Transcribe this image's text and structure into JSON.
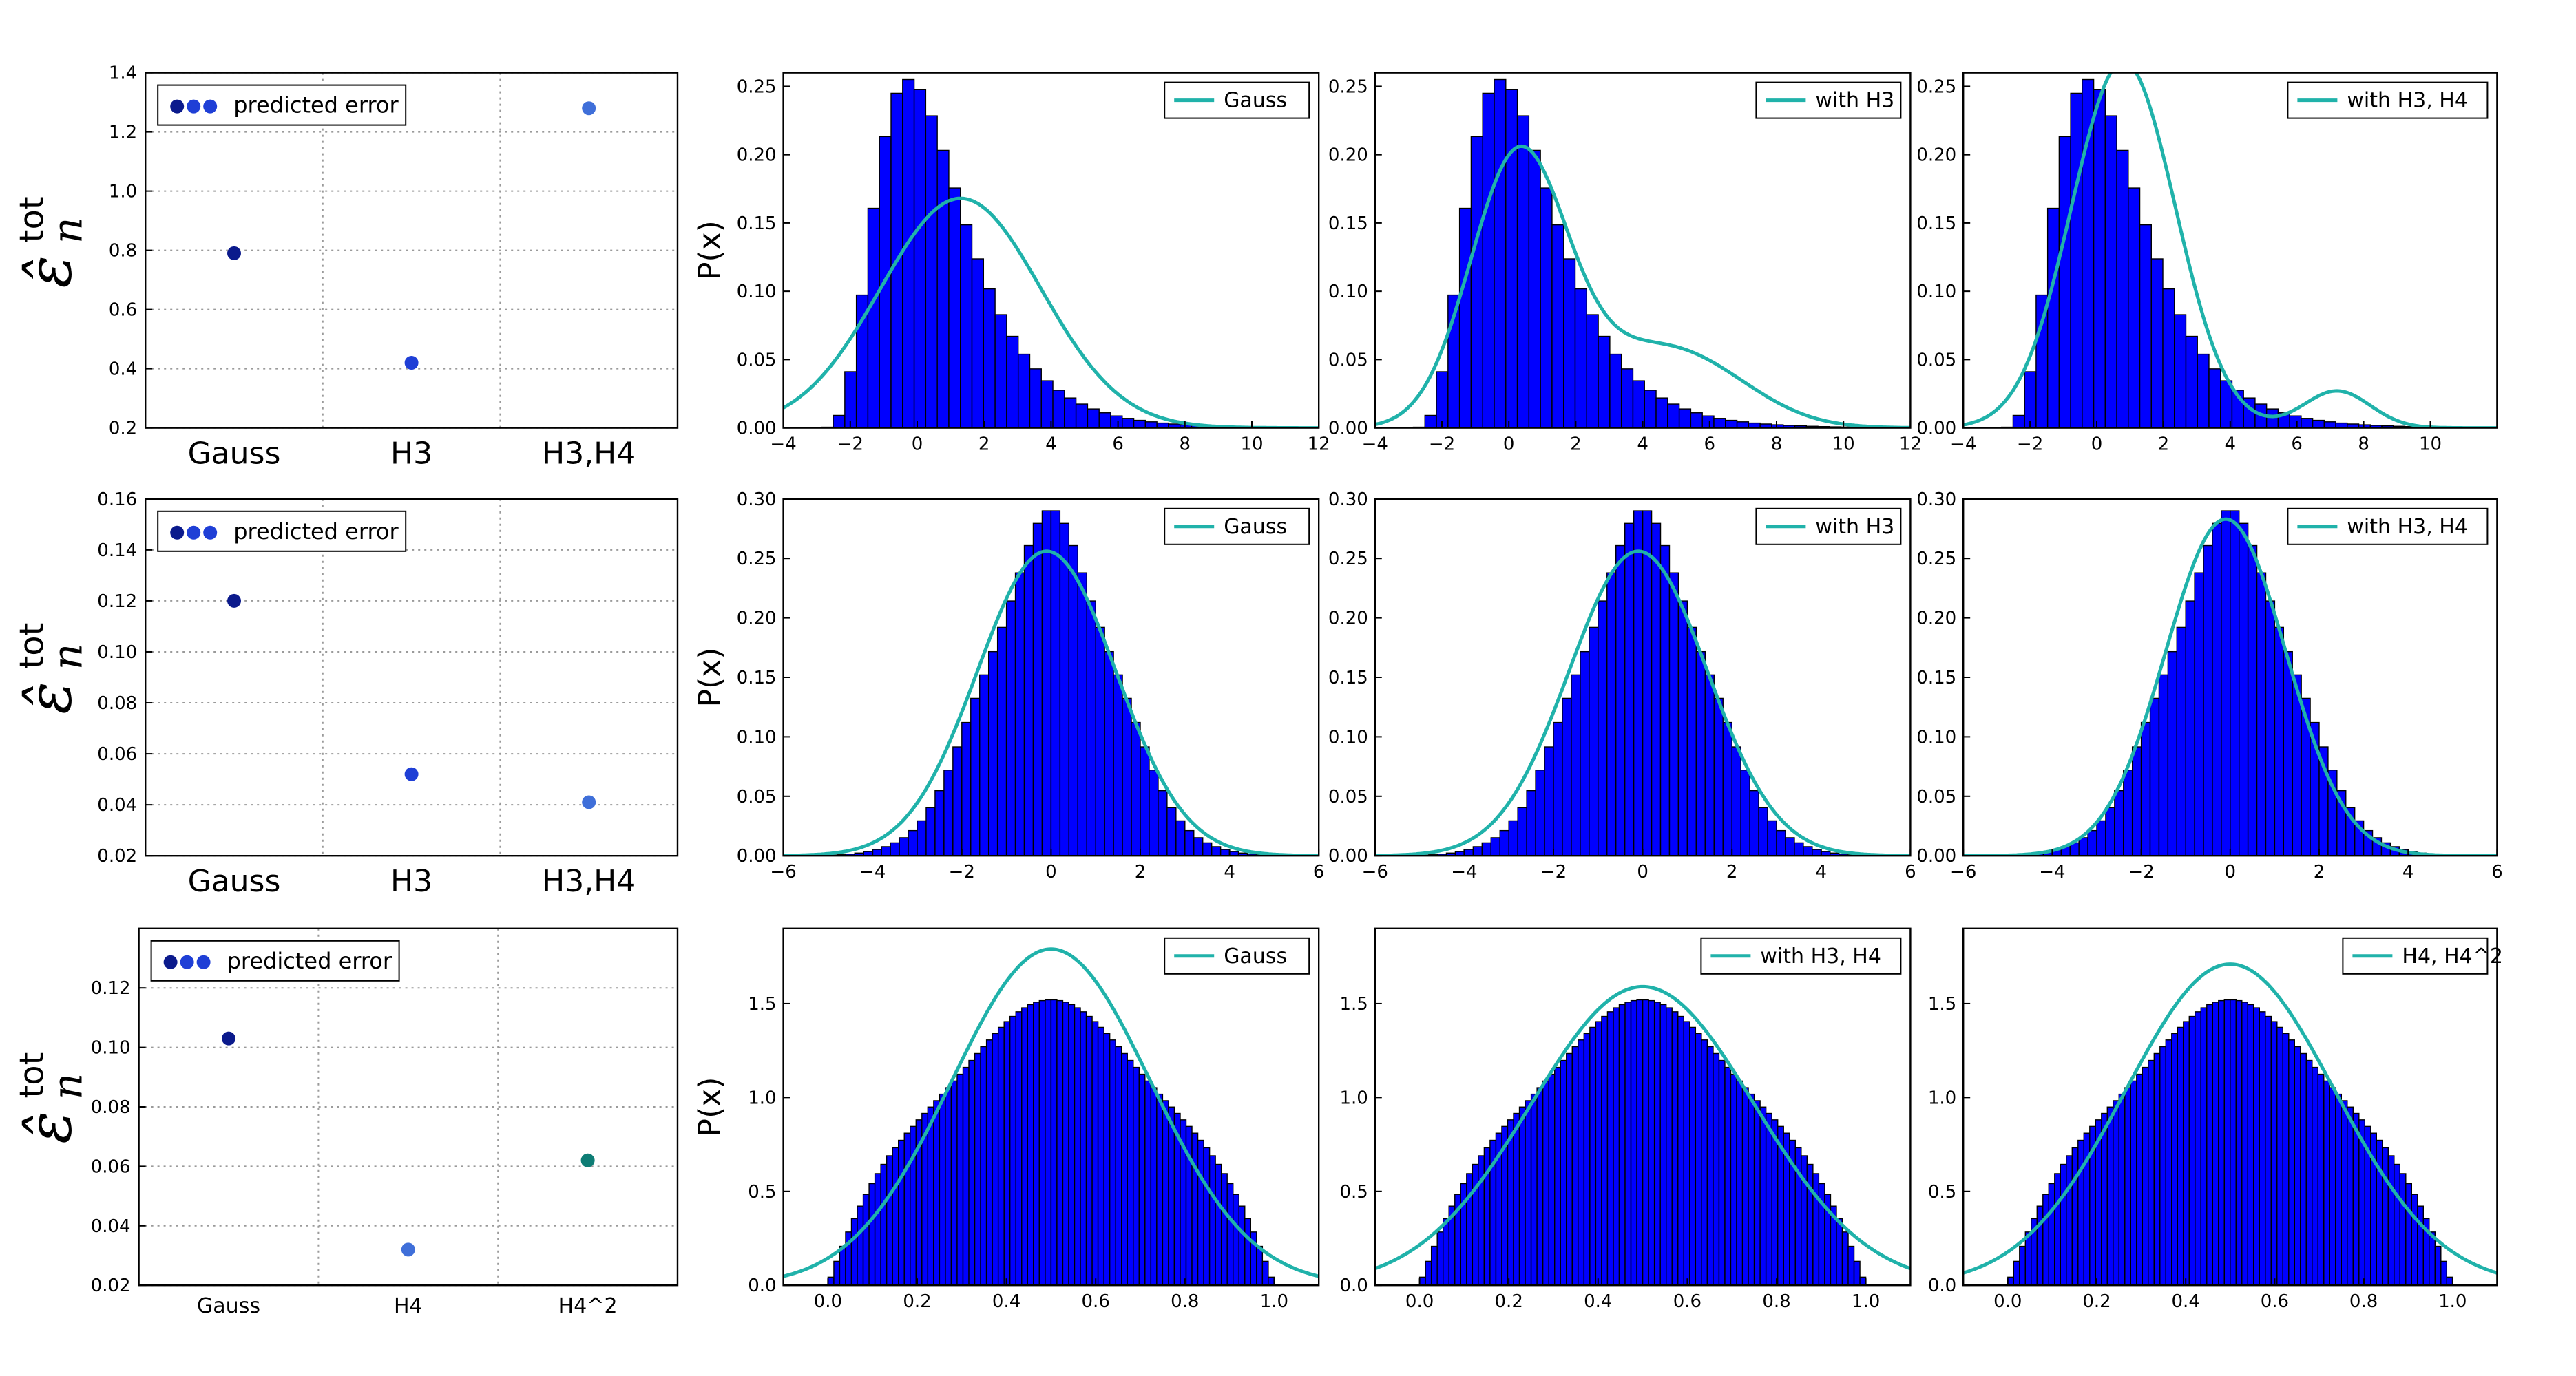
{
  "colors": {
    "hist_fill": "#0000ff",
    "hist_edge": "#000000",
    "fit_line": "#20b2aa",
    "dot_gauss": "#0b1a8c",
    "dot_h3": "#1f3fd6",
    "dot_h3h4": "#3f6fd9",
    "dot_teal": "#0e7d75",
    "grid": "#9a9a9a"
  },
  "ylabel_error": {
    "main": "ε̂",
    "sub": "n",
    "sup": "tot"
  },
  "chart_data": [
    {
      "type": "scatter",
      "row": 0,
      "col": 0,
      "categories": [
        "Gauss",
        "H3",
        "H3,H4"
      ],
      "points": [
        {
          "category": "Gauss",
          "y": 0.79,
          "color": "#0b1a8c"
        },
        {
          "category": "H3",
          "y": 0.42,
          "color": "#1f3fd6"
        },
        {
          "category": "H3,H4",
          "y": 1.28,
          "color": "#3f6fd9"
        }
      ],
      "ylim": [
        0.2,
        1.4
      ],
      "yticks": [
        0.2,
        0.4,
        0.6,
        0.8,
        1.0,
        1.2,
        1.4
      ],
      "ytick_labels": [
        "0.2",
        "0.4",
        "0.6",
        "0.8",
        "1.0",
        "1.2",
        "1.4"
      ],
      "legend": "predicted error",
      "grid": true,
      "legend_position": "top-left"
    },
    {
      "type": "scatter",
      "row": 1,
      "col": 0,
      "categories": [
        "Gauss",
        "H3",
        "H3,H4"
      ],
      "points": [
        {
          "category": "Gauss",
          "y": 0.12,
          "color": "#0b1a8c"
        },
        {
          "category": "H3",
          "y": 0.052,
          "color": "#1f3fd6"
        },
        {
          "category": "H3,H4",
          "y": 0.041,
          "color": "#3f6fd9"
        }
      ],
      "ylim": [
        0.02,
        0.16
      ],
      "yticks": [
        0.02,
        0.04,
        0.06,
        0.08,
        0.1,
        0.12,
        0.14,
        0.16
      ],
      "ytick_labels": [
        "0.02",
        "0.04",
        "0.06",
        "0.08",
        "0.10",
        "0.12",
        "0.14",
        "0.16"
      ],
      "legend": "predicted error",
      "grid": true,
      "legend_position": "top-left"
    },
    {
      "type": "scatter",
      "row": 2,
      "col": 0,
      "categories": [
        "Gauss",
        "H4",
        "H4^2"
      ],
      "points": [
        {
          "category": "Gauss",
          "y": 0.103,
          "color": "#0b1a8c"
        },
        {
          "category": "H4",
          "y": 0.032,
          "color": "#3f6fd9"
        },
        {
          "category": "H4^2",
          "y": 0.062,
          "color": "#0e7d75"
        }
      ],
      "ylim": [
        0.02,
        0.14
      ],
      "yticks": [
        0.02,
        0.04,
        0.06,
        0.08,
        0.1,
        0.12
      ],
      "ytick_labels": [
        "0.02",
        "0.04",
        "0.06",
        "0.08",
        "0.10",
        "0.12"
      ],
      "legend": "predicted error",
      "grid": true,
      "legend_position": "top-left"
    },
    {
      "type": "bar",
      "row": 0,
      "col": 1,
      "dist": "skewed",
      "fit": "gauss",
      "ylabel": "P(x)",
      "legend": "Gauss",
      "legend_position": "top-right",
      "xlim": [
        -4,
        12
      ],
      "ylim": [
        0,
        0.26
      ],
      "xticks": [
        -4,
        -2,
        0,
        2,
        4,
        6,
        8,
        10,
        12
      ],
      "xtick_labels": [
        "−4",
        "−2",
        "0",
        "2",
        "4",
        "6",
        "8",
        "10",
        "12"
      ],
      "yticks": [
        0,
        0.05,
        0.1,
        0.15,
        0.2,
        0.25
      ],
      "ytick_labels": [
        "0.00",
        "0.05",
        "0.10",
        "0.15",
        "0.20",
        "0.25"
      ],
      "bin_range": [
        -3.2,
        12
      ],
      "bins": 44,
      "peak": 0.255,
      "fit_params": {
        "mean": 1.3,
        "sd": 2.4,
        "peak": 0.168
      }
    },
    {
      "type": "bar",
      "row": 0,
      "col": 2,
      "dist": "skewed",
      "fit": "h3",
      "legend": "with H3",
      "legend_position": "top-right",
      "xlim": [
        -4,
        12
      ],
      "ylim": [
        0,
        0.26
      ],
      "xticks": [
        -4,
        -2,
        0,
        2,
        4,
        6,
        8,
        10,
        12
      ],
      "xtick_labels": [
        "−4",
        "−2",
        "0",
        "2",
        "4",
        "6",
        "8",
        "10",
        "12"
      ],
      "yticks": [
        0,
        0.05,
        0.1,
        0.15,
        0.2,
        0.25
      ],
      "ytick_labels": [
        "0.00",
        "0.05",
        "0.10",
        "0.15",
        "0.20",
        "0.25"
      ],
      "bin_range": [
        -3.2,
        12
      ],
      "bins": 44,
      "peak": 0.255
    },
    {
      "type": "bar",
      "row": 0,
      "col": 3,
      "dist": "skewed",
      "fit": "h3h4",
      "legend": "with H3, H4",
      "legend_position": "top-right",
      "xlim": [
        -4,
        12
      ],
      "ylim": [
        0,
        0.26
      ],
      "xticks": [
        -4,
        -2,
        0,
        2,
        4,
        6,
        8,
        10
      ],
      "xtick_labels": [
        "−4",
        "−2",
        "0",
        "2",
        "4",
        "6",
        "8",
        "10"
      ],
      "yticks": [
        0,
        0.05,
        0.1,
        0.15,
        0.2,
        0.25
      ],
      "ytick_labels": [
        "0.00",
        "0.05",
        "0.10",
        "0.15",
        "0.20",
        "0.25"
      ],
      "bin_range": [
        -3.2,
        12
      ],
      "bins": 44,
      "peak": 0.255
    },
    {
      "type": "bar",
      "row": 1,
      "col": 1,
      "dist": "normal",
      "fit": "gauss",
      "ylabel": "P(x)",
      "legend": "Gauss",
      "legend_position": "top-right",
      "xlim": [
        -6,
        6
      ],
      "ylim": [
        0,
        0.3
      ],
      "xticks": [
        -6,
        -4,
        -2,
        0,
        2,
        4,
        6
      ],
      "xtick_labels": [
        "−6",
        "−4",
        "−2",
        "0",
        "2",
        "4",
        "6"
      ],
      "yticks": [
        0,
        0.05,
        0.1,
        0.15,
        0.2,
        0.25,
        0.3
      ],
      "ytick_labels": [
        "0.00",
        "0.05",
        "0.10",
        "0.15",
        "0.20",
        "0.25",
        "0.30"
      ],
      "bin_range": [
        -5.6,
        5.6
      ],
      "bins": 56,
      "peak": 0.29,
      "fit_params": {
        "mean": -0.1,
        "sd": 1.55,
        "peak": 0.256
      }
    },
    {
      "type": "bar",
      "row": 1,
      "col": 2,
      "dist": "normal",
      "fit": "gauss",
      "legend": "with H3",
      "legend_position": "top-right",
      "xlim": [
        -6,
        6
      ],
      "ylim": [
        0,
        0.3
      ],
      "xticks": [
        -6,
        -4,
        -2,
        0,
        2,
        4,
        6
      ],
      "xtick_labels": [
        "−6",
        "−4",
        "−2",
        "0",
        "2",
        "4",
        "6"
      ],
      "yticks": [
        0,
        0.05,
        0.1,
        0.15,
        0.2,
        0.25,
        0.3
      ],
      "ytick_labels": [
        "0.00",
        "0.05",
        "0.10",
        "0.15",
        "0.20",
        "0.25",
        "0.30"
      ],
      "bin_range": [
        -5.6,
        5.6
      ],
      "bins": 56,
      "peak": 0.29,
      "fit_params": {
        "mean": -0.1,
        "sd": 1.55,
        "peak": 0.256
      }
    },
    {
      "type": "bar",
      "row": 1,
      "col": 3,
      "dist": "normal",
      "fit": "gauss",
      "legend": "with H3, H4",
      "legend_position": "top-right",
      "xlim": [
        -6,
        6
      ],
      "ylim": [
        0,
        0.3
      ],
      "xticks": [
        -6,
        -4,
        -2,
        0,
        2,
        4,
        6
      ],
      "xtick_labels": [
        "−6",
        "−4",
        "−2",
        "0",
        "2",
        "4",
        "6"
      ],
      "yticks": [
        0,
        0.05,
        0.1,
        0.15,
        0.2,
        0.25,
        0.3
      ],
      "ytick_labels": [
        "0.00",
        "0.05",
        "0.10",
        "0.15",
        "0.20",
        "0.25",
        "0.30"
      ],
      "bin_range": [
        -5.6,
        5.6
      ],
      "bins": 56,
      "peak": 0.29,
      "fit_params": {
        "mean": -0.1,
        "sd": 1.35,
        "peak": 0.283
      }
    },
    {
      "type": "bar",
      "row": 2,
      "col": 1,
      "dist": "sum_uniform",
      "fit": "gauss",
      "ylabel": "P(x)",
      "legend": "Gauss",
      "legend_position": "top-right",
      "xlim": [
        -0.1,
        1.1
      ],
      "ylim": [
        0,
        1.9
      ],
      "xticks": [
        0.0,
        0.2,
        0.4,
        0.6,
        0.8,
        1.0
      ],
      "xtick_labels": [
        "0.0",
        "0.2",
        "0.4",
        "0.6",
        "0.8",
        "1.0"
      ],
      "yticks": [
        0,
        0.5,
        1.0,
        1.5
      ],
      "ytick_labels": [
        "0.0",
        "0.5",
        "1.0",
        "1.5"
      ],
      "bin_range": [
        0,
        1
      ],
      "bins": 76,
      "peak": 1.52,
      "fit_params": {
        "mean": 0.5,
        "sd": 0.223,
        "peak": 1.79
      }
    },
    {
      "type": "bar",
      "row": 2,
      "col": 2,
      "dist": "sum_uniform",
      "fit": "gauss",
      "legend": "with H3, H4",
      "legend_position": "top-right",
      "xlim": [
        -0.1,
        1.1
      ],
      "ylim": [
        0,
        1.9
      ],
      "xticks": [
        0.0,
        0.2,
        0.4,
        0.6,
        0.8,
        1.0
      ],
      "xtick_labels": [
        "0.0",
        "0.2",
        "0.4",
        "0.6",
        "0.8",
        "1.0"
      ],
      "yticks": [
        0,
        0.5,
        1.0,
        1.5
      ],
      "ytick_labels": [
        "0.0",
        "0.5",
        "1.0",
        "1.5"
      ],
      "bin_range": [
        0,
        1
      ],
      "bins": 76,
      "peak": 1.52,
      "fit_params": {
        "mean": 0.5,
        "sd": 0.25,
        "peak": 1.59
      }
    },
    {
      "type": "bar",
      "row": 2,
      "col": 3,
      "dist": "sum_uniform",
      "fit": "gauss",
      "legend": "H4, H4^2",
      "legend_position": "top-right",
      "xlim": [
        -0.1,
        1.1
      ],
      "ylim": [
        0,
        1.9
      ],
      "xticks": [
        0.0,
        0.2,
        0.4,
        0.6,
        0.8,
        1.0
      ],
      "xtick_labels": [
        "0.0",
        "0.2",
        "0.4",
        "0.6",
        "0.8",
        "1.0"
      ],
      "yticks": [
        0,
        0.5,
        1.0,
        1.5
      ],
      "ytick_labels": [
        "0.0",
        "0.5",
        "1.0",
        "1.5"
      ],
      "bin_range": [
        0,
        1
      ],
      "bins": 76,
      "peak": 1.52,
      "fit_params": {
        "mean": 0.5,
        "sd": 0.235,
        "peak": 1.71
      }
    }
  ]
}
